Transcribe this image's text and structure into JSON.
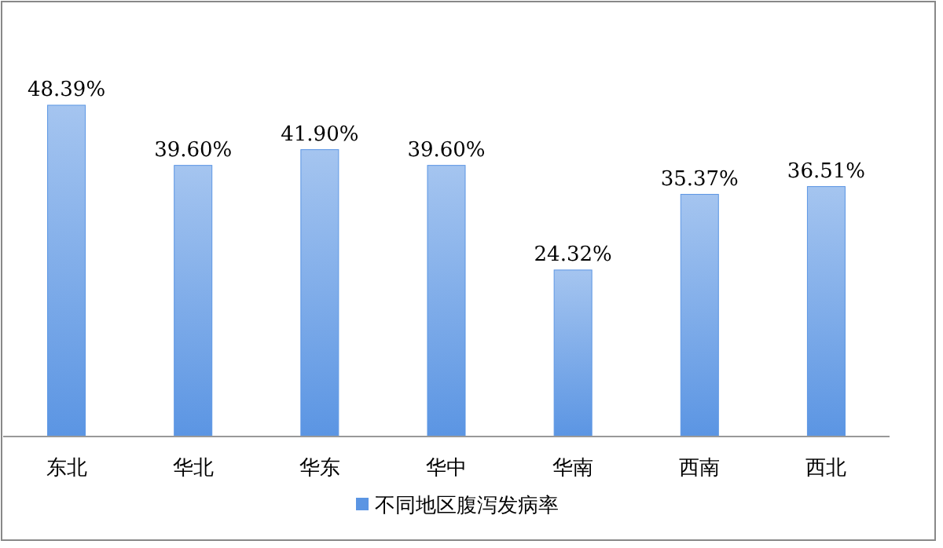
{
  "chart_data": {
    "type": "bar",
    "categories": [
      "东北",
      "华北",
      "华东",
      "华中",
      "华南",
      "西南",
      "西北"
    ],
    "series": [
      {
        "name": "不同地区腹泻发病率",
        "color": "#5b95e3",
        "values": [
          48.39,
          39.6,
          41.9,
          39.6,
          24.32,
          35.37,
          36.51
        ],
        "value_labels": [
          "48.39%",
          "39.60%",
          "41.90%",
          "39.60%",
          "24.32%",
          "35.37%",
          "36.51%"
        ]
      }
    ],
    "legend": "bottom"
  }
}
